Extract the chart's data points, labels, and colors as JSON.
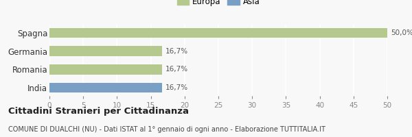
{
  "categories": [
    "India",
    "Romania",
    "Germania",
    "Spagna"
  ],
  "values": [
    16.7,
    16.7,
    16.7,
    50.0
  ],
  "bar_colors": [
    "#7a9fc4",
    "#b5c98e",
    "#b5c98e",
    "#b5c98e"
  ],
  "labels": [
    "16,7%",
    "16,7%",
    "16,7%",
    "50,0%"
  ],
  "legend_europa_color": "#b5c98e",
  "legend_asia_color": "#7a9fc4",
  "xlim": [
    0,
    50
  ],
  "xticks": [
    0,
    5,
    10,
    15,
    20,
    25,
    30,
    35,
    40,
    45,
    50
  ],
  "title_bold": "Cittadini Stranieri per Cittadinanza",
  "subtitle": "COMUNE DI DUALCHI (NU) - Dati ISTAT al 1° gennaio di ogni anno - Elaborazione TUTTITALIA.IT",
  "bg_color": "#f8f8f8",
  "bar_height": 0.55,
  "tick_fontsize": 7.5,
  "label_fontsize": 7.5,
  "title_fontsize": 9.5,
  "subtitle_fontsize": 7.0
}
